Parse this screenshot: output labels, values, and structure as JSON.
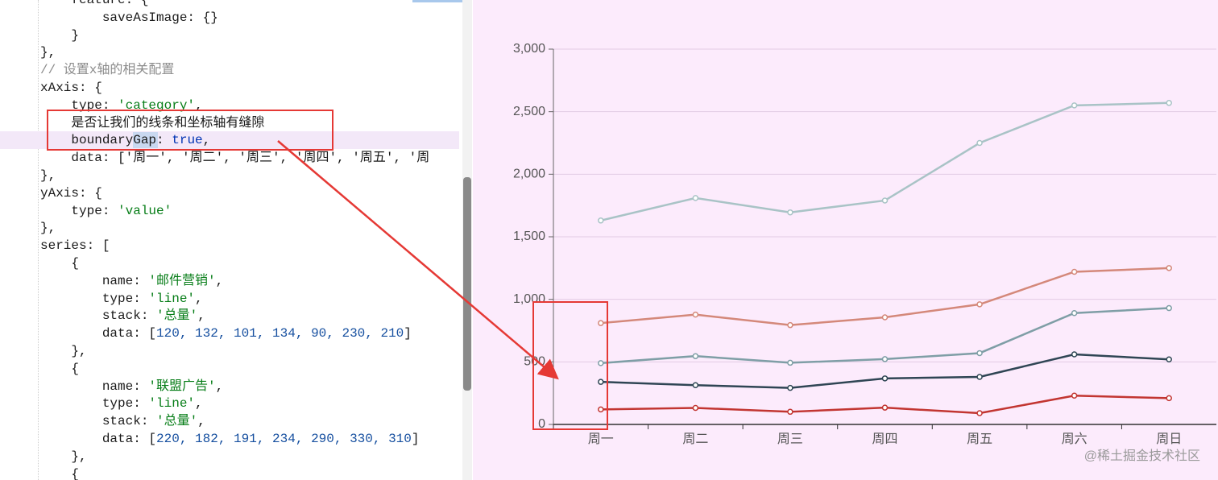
{
  "code": {
    "lines": [
      [
        {
          "text": "    feature: {"
        }
      ],
      [
        {
          "text": "        saveAsImage: {}"
        }
      ],
      [
        {
          "text": "    }"
        }
      ],
      [
        {
          "text": "},"
        }
      ],
      [
        {
          "text": "// 设置x轴的相关配置",
          "color": "#8c8c8c"
        }
      ],
      [
        {
          "text": "xAxis: {"
        }
      ],
      [
        {
          "text": "    type: "
        },
        {
          "text": "'category'",
          "color": "#067d17"
        },
        {
          "text": ","
        }
      ],
      [
        {
          "text": "    是否让我们的线条和坐标轴有缝隙"
        }
      ],
      [
        {
          "text": "    boundaryGap: "
        },
        {
          "text": "true",
          "color": "#0033b3"
        },
        {
          "text": ","
        }
      ],
      [
        {
          "text": "    data: ['周一', '周二', '周三', '周四', '周五', '周"
        }
      ],
      [
        {
          "text": "},"
        }
      ],
      [
        {
          "text": "yAxis: {"
        }
      ],
      [
        {
          "text": "    type: "
        },
        {
          "text": "'value'",
          "color": "#067d17"
        }
      ],
      [
        {
          "text": "},"
        }
      ],
      [
        {
          "text": "series: ["
        }
      ],
      [
        {
          "text": "    {"
        }
      ],
      [
        {
          "text": "        name: "
        },
        {
          "text": "'邮件营销'",
          "color": "#067d17"
        },
        {
          "text": ","
        }
      ],
      [
        {
          "text": "        type: "
        },
        {
          "text": "'line'",
          "color": "#067d17"
        },
        {
          "text": ","
        }
      ],
      [
        {
          "text": "        stack: "
        },
        {
          "text": "'总量'",
          "color": "#067d17"
        },
        {
          "text": ","
        }
      ],
      [
        {
          "text": "        data: ["
        },
        {
          "text": "120, 132, 101, 134, 90, 230, 210",
          "color": "#1750a0"
        },
        {
          "text": "]"
        }
      ],
      [
        {
          "text": "    },"
        }
      ],
      [
        {
          "text": "    {"
        }
      ],
      [
        {
          "text": "        name: "
        },
        {
          "text": "'联盟广告'",
          "color": "#067d17"
        },
        {
          "text": ","
        }
      ],
      [
        {
          "text": "        type: "
        },
        {
          "text": "'line'",
          "color": "#067d17"
        },
        {
          "text": ","
        }
      ],
      [
        {
          "text": "        stack: "
        },
        {
          "text": "'总量'",
          "color": "#067d17"
        },
        {
          "text": ","
        }
      ],
      [
        {
          "text": "        data: ["
        },
        {
          "text": "220, 182, 191, 234, 290, 330, 310",
          "color": "#1750a0"
        },
        {
          "text": "]"
        }
      ],
      [
        {
          "text": "    },"
        }
      ],
      [
        {
          "text": "    {"
        }
      ]
    ]
  },
  "chart_data": {
    "type": "line",
    "stacked": true,
    "grid": true,
    "categories": [
      "周一",
      "周二",
      "周三",
      "周四",
      "周五",
      "周六",
      "周日"
    ],
    "series": [
      {
        "color": "#c23531",
        "values": [
          120,
          132,
          101,
          134,
          90,
          230,
          210
        ]
      },
      {
        "color": "#2f4554",
        "values": [
          220,
          182,
          191,
          234,
          290,
          330,
          310
        ]
      },
      {
        "color": "#7f9ea6",
        "values": [
          150,
          232,
          201,
          154,
          190,
          330,
          410
        ]
      },
      {
        "color": "#d4887a",
        "values": [
          320,
          332,
          301,
          334,
          390,
          330,
          320
        ]
      },
      {
        "color": "#a9c3c6",
        "values": [
          820,
          932,
          901,
          934,
          1290,
          1330,
          1320
        ]
      }
    ],
    "ylim": [
      0,
      3000
    ],
    "yticks": [
      0,
      500,
      {
        "value": 1000,
        "label": "1,000"
      },
      {
        "value": 1500,
        "label": "1,500"
      },
      {
        "value": 2000,
        "label": "2,000"
      },
      {
        "value": 2500,
        "label": "2,500"
      },
      {
        "value": 3000,
        "label": "3,000"
      }
    ]
  },
  "watermark": "@稀土掘金技术社区"
}
